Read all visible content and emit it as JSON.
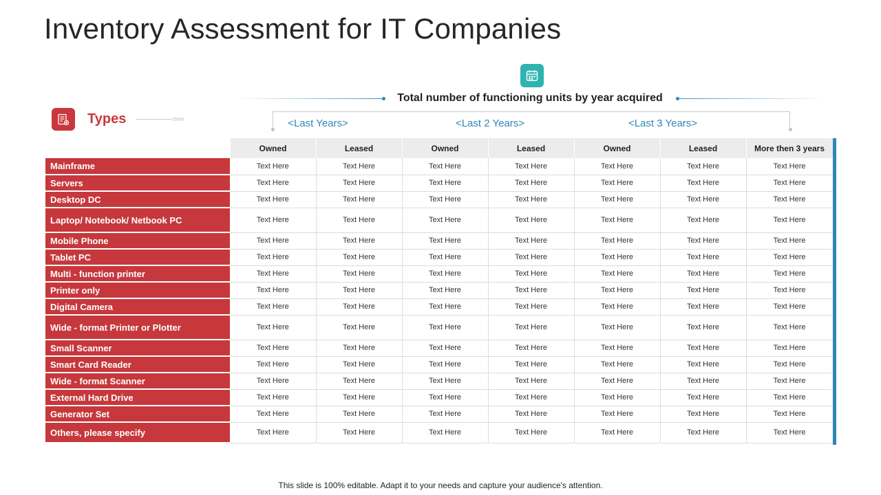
{
  "title": "Inventory Assessment for IT Companies",
  "header": {
    "icon": "calendar-icon",
    "text": "Total number of functioning units by year acquired"
  },
  "types": {
    "icon": "document-list-icon",
    "label": "Types",
    "arrow": "›››››"
  },
  "year_groups": [
    "<Last Years>",
    "<Last 2 Years>",
    "<Last 3 Years>"
  ],
  "columns": [
    "Owned",
    "Leased",
    "Owned",
    "Leased",
    "Owned",
    "Leased",
    "More then 3 years"
  ],
  "rows": [
    {
      "label": "Mainframe",
      "cells": [
        "Text Here",
        "Text Here",
        "Text Here",
        "Text Here",
        "Text Here",
        "Text Here",
        "Text Here"
      ]
    },
    {
      "label": "Servers",
      "cells": [
        "Text Here",
        "Text Here",
        "Text Here",
        "Text Here",
        "Text Here",
        "Text Here",
        "Text Here"
      ]
    },
    {
      "label": "Desktop  DC",
      "cells": [
        "Text Here",
        "Text Here",
        "Text Here",
        "Text Here",
        "Text Here",
        "Text Here",
        "Text Here"
      ]
    },
    {
      "label": "Laptop/ Notebook/ Netbook PC",
      "cells": [
        "Text Here",
        "Text Here",
        "Text Here",
        "Text Here",
        "Text Here",
        "Text Here",
        "Text Here"
      ]
    },
    {
      "label": "Mobile Phone",
      "cells": [
        "Text Here",
        "Text Here",
        "Text Here",
        "Text Here",
        "Text Here",
        "Text Here",
        "Text Here"
      ]
    },
    {
      "label": "Tablet PC",
      "cells": [
        "Text Here",
        "Text Here",
        "Text Here",
        "Text Here",
        "Text Here",
        "Text Here",
        "Text Here"
      ]
    },
    {
      "label": "Multi - function printer",
      "cells": [
        "Text Here",
        "Text Here",
        "Text Here",
        "Text Here",
        "Text Here",
        "Text Here",
        "Text Here"
      ]
    },
    {
      "label": "Printer only",
      "cells": [
        "Text Here",
        "Text Here",
        "Text Here",
        "Text Here",
        "Text Here",
        "Text Here",
        "Text Here"
      ]
    },
    {
      "label": "Digital Camera",
      "cells": [
        "Text Here",
        "Text Here",
        "Text Here",
        "Text Here",
        "Text Here",
        "Text Here",
        "Text Here"
      ]
    },
    {
      "label": "Wide - format Printer or Plotter",
      "cells": [
        "Text Here",
        "Text Here",
        "Text Here",
        "Text Here",
        "Text Here",
        "Text Here",
        "Text Here"
      ]
    },
    {
      "label": "Small Scanner",
      "cells": [
        "Text Here",
        "Text Here",
        "Text Here",
        "Text Here",
        "Text Here",
        "Text Here",
        "Text Here"
      ]
    },
    {
      "label": "Smart Card Reader",
      "cells": [
        "Text Here",
        "Text Here",
        "Text Here",
        "Text Here",
        "Text Here",
        "Text Here",
        "Text Here"
      ]
    },
    {
      "label": "Wide - format Scanner",
      "cells": [
        "Text Here",
        "Text Here",
        "Text Here",
        "Text Here",
        "Text Here",
        "Text Here",
        "Text Here"
      ]
    },
    {
      "label": "External Hard Drive",
      "cells": [
        "Text Here",
        "Text Here",
        "Text Here",
        "Text Here",
        "Text Here",
        "Text Here",
        "Text Here"
      ]
    },
    {
      "label": "Generator Set",
      "cells": [
        "Text Here",
        "Text Here",
        "Text Here",
        "Text Here",
        "Text Here",
        "Text Here",
        "Text Here"
      ]
    },
    {
      "label": "Others,  please specify",
      "cells": [
        "Text Here",
        "Text Here",
        "Text Here",
        "Text Here",
        "Text Here",
        "Text Here",
        "Text Here"
      ]
    }
  ],
  "footer": "This slide is 100% editable. Adapt it to your needs and capture your audience's attention.",
  "colors": {
    "accent_red": "#c6383c",
    "accent_blue": "#2f86b8",
    "accent_teal": "#2fb3b0"
  }
}
